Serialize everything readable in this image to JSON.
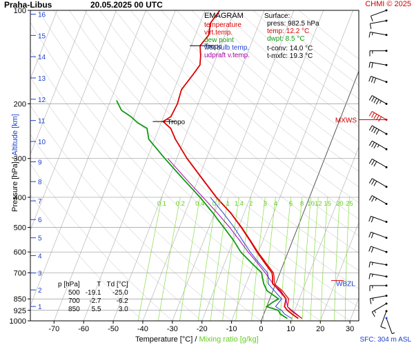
{
  "header": {
    "station": "Praha-Libus",
    "datetime": "20.05.2025 00 UTC",
    "copyright": "CHMI © 2025"
  },
  "legend": {
    "title": "EMAGRAM",
    "items": [
      {
        "label": "temperature",
        "color": "#dd0000"
      },
      {
        "label": "virt.temp.",
        "color": "#dd0000"
      },
      {
        "label": "dew point",
        "color": "#119911"
      },
      {
        "label": "wet bulb temp.",
        "color": "#2244cc"
      },
      {
        "label": "udpraft v.temp.",
        "color": "#aa00aa"
      }
    ]
  },
  "surface": {
    "title": "Surface:",
    "press": "press: 982.5 hPa",
    "temp": "temp: 12.2 °C",
    "dwpt": "dwpt: 8.5 °C",
    "tconv": "t-conv: 14.0 °C",
    "tmxfc": "t-mxfc: 19.3 °C"
  },
  "stability_table": {
    "headers": [
      "p [hPa]",
      "T",
      "Td [°C]"
    ],
    "rows": [
      [
        "500",
        "-19.1",
        "-25.0"
      ],
      [
        "700",
        "-2.7",
        "-6.2"
      ],
      [
        "850",
        "5.5",
        "3.0"
      ]
    ]
  },
  "labels": {
    "tropo1": "Tropo",
    "tropo2": "Tropo",
    "mxws": "MXWS",
    "wbzl": "WBZL",
    "xlabel_main": "Temperature [°C]  /  ",
    "xlabel_mix": "Mixing ratio [g/kg]",
    "ylabel_main": "Pressure [hPa]  /  ",
    "ylabel_alt": "Altitude [km]",
    "sfc": "SFC: 304 m ASL"
  },
  "colors": {
    "temperature": "#dd0000",
    "dewpoint": "#119911",
    "wetbulb": "#2244cc",
    "parcel": "#aa00aa",
    "mixing_ratio": "#88dd44",
    "altitude": "#1a3fcc",
    "grid": "#999999",
    "wind": "#000000"
  },
  "chart_data": {
    "type": "line",
    "title": "Praha-Libus   20.05.2025 00 UTC",
    "xlabel": "Temperature [°C]  /  Mixing ratio [g/kg]",
    "ylabel": "Pressure [hPa]  /  Altitude [km]",
    "x_ticks": [
      -70,
      -60,
      -50,
      -40,
      -30,
      -20,
      -10,
      0,
      10,
      20,
      30
    ],
    "xlim": [
      -78,
      33
    ],
    "y_ticks": [
      100,
      200,
      300,
      400,
      500,
      600,
      700,
      850,
      925,
      1000
    ],
    "ylim": [
      1000,
      100
    ],
    "y_scale": "log",
    "altitude_ticks_km": [
      1,
      2,
      3,
      4,
      5,
      6,
      7,
      8,
      9,
      10,
      11,
      12,
      13,
      14,
      15,
      16
    ],
    "mixing_ratio_labels": [
      "0.1",
      "0.2",
      "0.4",
      "0.7",
      "1",
      "1.4",
      "2",
      "3",
      "4",
      "6",
      "8",
      "10",
      "12",
      "15",
      "20",
      "25"
    ],
    "tropopause_hpa": [
      130,
      228
    ],
    "mxws_hpa": 225,
    "wbzl_hpa": 757,
    "series": [
      {
        "name": "temperature",
        "p": [
          982.5,
          950,
          925,
          900,
          850,
          800,
          760,
          720,
          700,
          650,
          600,
          550,
          500,
          450,
          400,
          350,
          300,
          260,
          240,
          228,
          220,
          200,
          180,
          160,
          150,
          140,
          130,
          120,
          110,
          100
        ],
        "t": [
          12.2,
          9.5,
          7.5,
          6.0,
          5.5,
          2.5,
          -1.0,
          -2.0,
          -2.7,
          -6.5,
          -10.5,
          -14.5,
          -19.1,
          -24.5,
          -31.5,
          -38.5,
          -46.5,
          -53.0,
          -56.0,
          -59.5,
          -57.5,
          -57.0,
          -57.5,
          -55.5,
          -54.5,
          -55.5,
          -57.0,
          -55.5,
          -56.5,
          -55.0
        ]
      },
      {
        "name": "virt.temp.",
        "p": [
          982.5,
          950,
          925,
          900,
          850,
          800,
          760,
          720,
          700,
          650,
          600,
          550,
          500,
          450,
          400,
          350,
          300
        ],
        "t": [
          13.5,
          10.7,
          8.6,
          7.0,
          6.4,
          3.2,
          -0.4,
          -1.5,
          -2.2,
          -6.1,
          -10.2,
          -14.3,
          -18.9,
          -24.4,
          -31.4,
          -38.4,
          -46.4
        ]
      },
      {
        "name": "dew point",
        "p": [
          982.5,
          950,
          925,
          900,
          870,
          850,
          800,
          760,
          720,
          700,
          650,
          600,
          550,
          500,
          450,
          400,
          350,
          300,
          260,
          240,
          230,
          220,
          210,
          200,
          195
        ],
        "t": [
          8.5,
          5.5,
          4.5,
          0.0,
          1.5,
          3.0,
          -2.0,
          -4.0,
          -5.5,
          -6.2,
          -11.0,
          -16.0,
          -20.0,
          -25.0,
          -30.5,
          -37.0,
          -45.0,
          -54.0,
          -62.0,
          -64.0,
          -68.0,
          -71.0,
          -75.0,
          -77.0,
          -78.0
        ]
      },
      {
        "name": "wet bulb temp.",
        "p": [
          982.5,
          950,
          925,
          900,
          850,
          800,
          760,
          720,
          700,
          650,
          600,
          550,
          500,
          450,
          400
        ],
        "t": [
          10.0,
          7.0,
          5.5,
          3.0,
          4.0,
          0.5,
          -2.5,
          -3.5,
          -4.2,
          -8.5,
          -12.8,
          -17.0,
          -21.5,
          -27.0,
          -33.5
        ]
      },
      {
        "name": "udpraft v.temp.",
        "p": [
          982.5,
          950,
          925,
          900,
          850,
          800,
          750,
          700,
          650,
          600,
          550,
          500,
          450,
          400,
          350,
          300
        ],
        "t": [
          13.5,
          11.0,
          9.0,
          7.0,
          5.5,
          2.0,
          -1.5,
          -5.0,
          -9.0,
          -13.5,
          -18.0,
          -23.0,
          -29.0,
          -36.0,
          -44.0,
          -53.0
        ]
      }
    ],
    "wind_barbs": [
      {
        "p": 980,
        "dir": 160,
        "kt": 5
      },
      {
        "p": 930,
        "dir": 200,
        "kt": 10
      },
      {
        "p": 880,
        "dir": 240,
        "kt": 15
      },
      {
        "p": 830,
        "dir": 260,
        "kt": 15
      },
      {
        "p": 770,
        "dir": 270,
        "kt": 15
      },
      {
        "p": 720,
        "dir": 280,
        "kt": 15
      },
      {
        "p": 660,
        "dir": 280,
        "kt": 15
      },
      {
        "p": 600,
        "dir": 290,
        "kt": 20
      },
      {
        "p": 540,
        "dir": 290,
        "kt": 20
      },
      {
        "p": 480,
        "dir": 290,
        "kt": 20
      },
      {
        "p": 420,
        "dir": 300,
        "kt": 25
      },
      {
        "p": 370,
        "dir": 300,
        "kt": 30
      },
      {
        "p": 320,
        "dir": 300,
        "kt": 30
      },
      {
        "p": 280,
        "dir": 300,
        "kt": 35
      },
      {
        "p": 250,
        "dir": 300,
        "kt": 40
      },
      {
        "p": 225,
        "dir": 300,
        "kt": 50
      },
      {
        "p": 200,
        "dir": 300,
        "kt": 45
      },
      {
        "p": 170,
        "dir": 290,
        "kt": 30
      },
      {
        "p": 150,
        "dir": 280,
        "kt": 20
      },
      {
        "p": 135,
        "dir": 270,
        "kt": 15
      },
      {
        "p": 120,
        "dir": 280,
        "kt": 15
      },
      {
        "p": 108,
        "dir": 260,
        "kt": 10
      },
      {
        "p": 100,
        "dir": 250,
        "kt": 10
      }
    ]
  }
}
